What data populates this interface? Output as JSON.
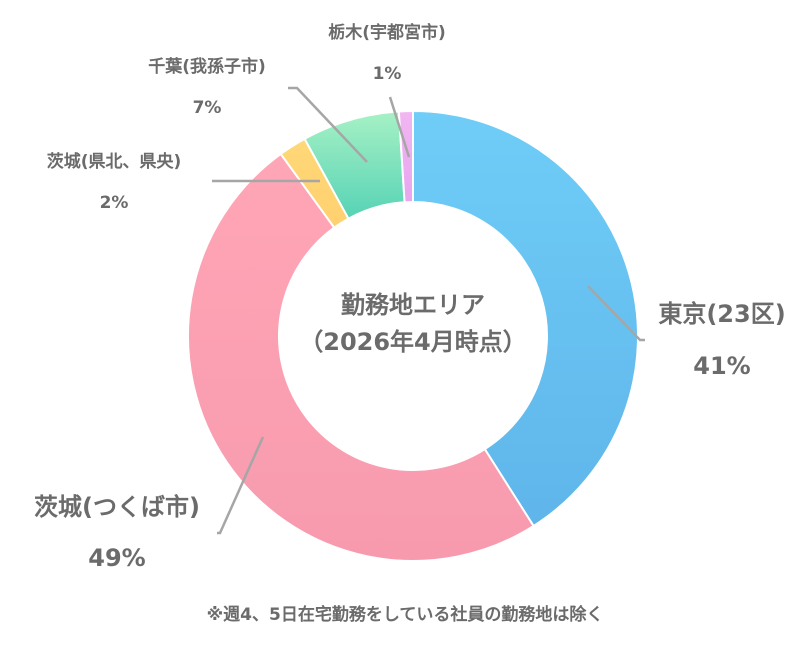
{
  "chart_data": {
    "type": "pie",
    "title": "勤務地エリア",
    "subtitle": "（2026年4月時点）",
    "slices": [
      {
        "name": "東京(23区)",
        "value": 41,
        "label": "41%",
        "color": "#6fcdf7",
        "color2": "#5fb5ea"
      },
      {
        "name": "茨城(つくば市)",
        "value": 49,
        "label": "49%",
        "color": "#ffa6b6",
        "color2": "#f79aae"
      },
      {
        "name": "茨城(県北、県央)",
        "value": 2,
        "label": "2%",
        "color": "#ffd877",
        "color2": "#ffd070"
      },
      {
        "name": "千葉(我孫子市)",
        "value": 7,
        "label": "7%",
        "color": "#a7f1c5",
        "color2": "#56d3b5"
      },
      {
        "name": "栃木(宇都宮市)",
        "value": 1,
        "label": "1%",
        "color": "#f2b6f2",
        "color2": "#e7a6ef"
      }
    ]
  },
  "footnote": "※週4、5日在宅勤務をしている社員の勤務地は除く"
}
